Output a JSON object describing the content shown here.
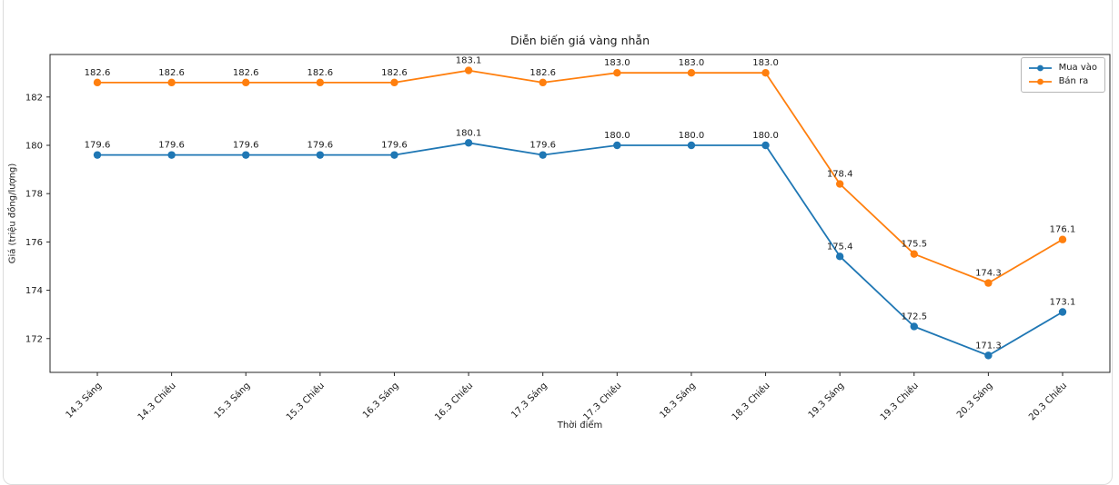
{
  "chart_data": {
    "type": "line",
    "title": "Diễn biến giá vàng nhẫn",
    "xlabel": "Thời điểm",
    "ylabel": "Giá (triệu đồng/lượng)",
    "categories": [
      "14.3 Sáng",
      "14.3 Chiều",
      "15.3 Sáng",
      "15.3 Chiều",
      "16.3 Sáng",
      "16.3 Chiều",
      "17.3 Sáng",
      "17.3 Chiều",
      "18.3 Sáng",
      "18.3 Chiều",
      "19.3 Sáng",
      "19.3 Chiều",
      "20.3 Sáng",
      "20.3 Chiều"
    ],
    "series": [
      {
        "name": "Mua vào",
        "color": "#1f77b4",
        "values": [
          179.6,
          179.6,
          179.6,
          179.6,
          179.6,
          180.1,
          179.6,
          180.0,
          180.0,
          180.0,
          175.4,
          172.5,
          171.3,
          173.1
        ]
      },
      {
        "name": "Bán ra",
        "color": "#ff7f0e",
        "values": [
          182.6,
          182.6,
          182.6,
          182.6,
          182.6,
          183.1,
          182.6,
          183.0,
          183.0,
          183.0,
          178.4,
          175.5,
          174.3,
          176.1
        ]
      }
    ],
    "yticks": [
      172,
      174,
      176,
      178,
      180,
      182
    ],
    "ylim": [
      170.6,
      183.76
    ],
    "grid": false,
    "legend_position": "upper right",
    "marker": "circle",
    "point_labels": true,
    "axis_color": "#262626",
    "text_color": "#1a1a1a"
  }
}
